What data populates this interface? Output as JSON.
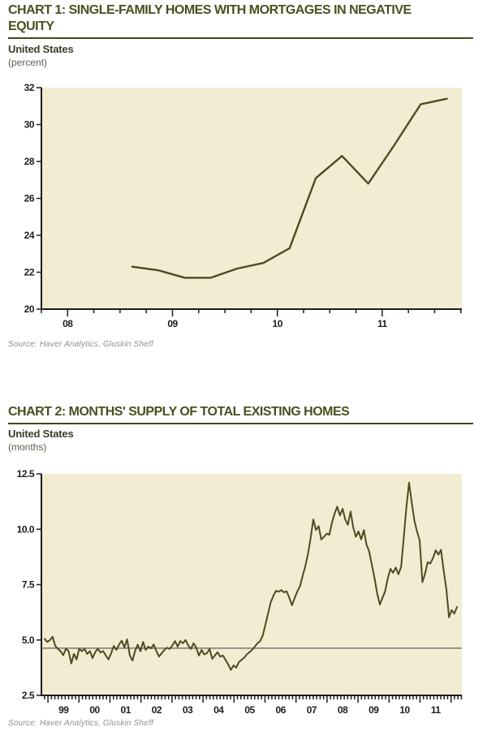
{
  "colors": {
    "page_bg": "#ffffff",
    "plot_bg": "#f2ecd3",
    "line": "#4c4c22",
    "axis": "#1c1c1c",
    "reference": "#3c3c3c",
    "title": "#47511f",
    "rule": "#3d4a1c",
    "subtitle_text": "#3a3d28",
    "unit_text": "#5c5f4c",
    "tick_text": "#1d1d1d",
    "source_text": "#8f8f8f"
  },
  "chart_data": [
    {
      "id": "chart-1",
      "type": "line",
      "title": "CHART 1: SINGLE-FAMILY HOMES WITH MORTGAGES IN NEGATIVE EQUITY",
      "title_line1": "CHART 1: SINGLE-FAMILY HOMES WITH MORTGAGES IN NEGATIVE",
      "title_line2": "EQUITY",
      "subtitle": "United States",
      "unit": "(percent)",
      "source": "Source: Haver Analytics, Gluskin Sheff",
      "frequency": "quarterly",
      "categories": [
        "2008 Q3",
        "2008 Q4",
        "2009 Q1",
        "2009 Q2",
        "2009 Q3",
        "2009 Q4",
        "2010 Q1",
        "2010 Q2",
        "2010 Q3",
        "2010 Q4",
        "2011 Q1",
        "2011 Q2",
        "2011 Q3"
      ],
      "values": [
        22.3,
        22.1,
        21.7,
        21.7,
        22.2,
        22.5,
        23.3,
        27.1,
        28.3,
        26.8,
        28.9,
        31.1,
        31.4
      ],
      "ylim": [
        20,
        32
      ],
      "y_ticks": [
        20,
        22,
        24,
        26,
        28,
        30,
        32
      ],
      "y_tick_labels": [
        "20",
        "22",
        "24",
        "26",
        "28",
        "30",
        "32"
      ],
      "x_tick_labels": [
        "08",
        "09",
        "10",
        "11"
      ],
      "xlabel": "",
      "ylabel": "percent",
      "grid": false,
      "legend": "none"
    },
    {
      "id": "chart-2",
      "type": "line",
      "title": "CHART 2: MONTHS' SUPPLY OF TOTAL EXISTING HOMES",
      "title_line1": "CHART 2: MONTHS' SUPPLY OF TOTAL EXISTING HOMES",
      "title_line2": "",
      "subtitle": "United States",
      "unit": "(months)",
      "source": "Source: Haver Analytics, Gluskin Sheff",
      "frequency": "monthly",
      "x_start": "1999-01",
      "x_end": "2011-12",
      "values": [
        5.05,
        4.91,
        5.0,
        5.15,
        4.73,
        4.6,
        4.49,
        4.31,
        4.61,
        4.5,
        3.94,
        4.37,
        4.12,
        4.61,
        4.49,
        4.61,
        4.37,
        4.5,
        4.18,
        4.45,
        4.61,
        4.43,
        4.5,
        4.3,
        4.12,
        4.4,
        4.73,
        4.55,
        4.8,
        4.97,
        4.67,
        5.03,
        4.31,
        4.07,
        4.5,
        4.79,
        4.49,
        4.91,
        4.55,
        4.7,
        4.62,
        4.8,
        4.5,
        4.25,
        4.4,
        4.55,
        4.65,
        4.6,
        4.75,
        4.95,
        4.7,
        4.95,
        4.85,
        5.0,
        4.75,
        4.6,
        4.85,
        4.65,
        4.3,
        4.55,
        4.35,
        4.4,
        4.6,
        4.15,
        4.3,
        4.45,
        4.25,
        4.3,
        4.1,
        3.9,
        3.65,
        3.85,
        3.75,
        4.0,
        4.1,
        4.2,
        4.35,
        4.45,
        4.55,
        4.7,
        4.85,
        4.95,
        5.2,
        5.69,
        6.2,
        6.71,
        7.0,
        7.22,
        7.18,
        7.25,
        7.15,
        7.2,
        6.9,
        6.57,
        6.9,
        7.2,
        7.43,
        7.9,
        8.34,
        8.9,
        9.6,
        10.44,
        9.96,
        10.14,
        9.54,
        9.65,
        9.8,
        9.75,
        10.3,
        10.7,
        11.02,
        10.62,
        10.92,
        10.45,
        10.2,
        10.8,
        10.08,
        9.66,
        9.9,
        9.54,
        9.96,
        9.3,
        9.0,
        8.4,
        7.8,
        7.1,
        6.6,
        6.9,
        7.2,
        7.79,
        8.21,
        8.03,
        8.27,
        7.97,
        8.3,
        9.6,
        11.0,
        12.1,
        11.2,
        10.38,
        9.9,
        9.48,
        7.61,
        8.0,
        8.51,
        8.45,
        8.7,
        9.05,
        8.85,
        9.07,
        8.14,
        7.3,
        6.02,
        6.35,
        6.19,
        6.49
      ],
      "ylim": [
        2.5,
        12.5
      ],
      "y_ticks": [
        2.5,
        5.0,
        7.5,
        10.0,
        12.5
      ],
      "y_tick_labels": [
        "2.5",
        "5.0",
        "7.5",
        "10.0",
        "12.5"
      ],
      "x_tick_labels": [
        "99",
        "00",
        "01",
        "02",
        "03",
        "04",
        "05",
        "06",
        "07",
        "08",
        "09",
        "10",
        "11"
      ],
      "reference_line": 4.63,
      "xlabel": "",
      "ylabel": "months",
      "grid": false,
      "legend": "none"
    }
  ]
}
